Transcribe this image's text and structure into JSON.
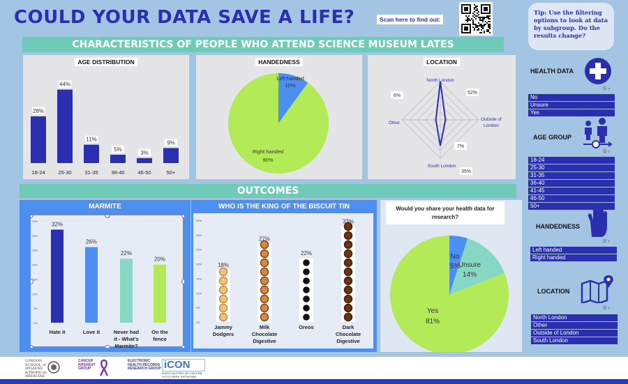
{
  "header": {
    "title": "COULD YOUR DATA SAVE A LIFE?",
    "scan_label": "Scan here to find out:"
  },
  "tip_text": "Tip: Use the filtering options to look at data by subgroup. Do the results change?",
  "sections": {
    "characteristics": "CHARACTERISTICS OF PEOPLE WHO ATTEND SCIENCE MUSEUM LATES",
    "outcomes": "OUTCOMES"
  },
  "colors": {
    "navy": "#2a2fb0",
    "teal": "#6fcbb8",
    "lime": "#b3ea57",
    "cornflower": "#4d8ff0",
    "lavender": "#a9a9e8",
    "mint": "#86d7c4"
  },
  "chart_data": [
    {
      "id": "age",
      "type": "bar",
      "title": "AGE DISTRIBUTION",
      "categories": [
        "18-24",
        "25-30",
        "31-35",
        "36-40",
        "46-50",
        "50+"
      ],
      "values": [
        28,
        44,
        11,
        5,
        3,
        9
      ],
      "labels": [
        "28%",
        "44%",
        "11%",
        "5%",
        "3%",
        "9%"
      ],
      "ylim": [
        0,
        48
      ]
    },
    {
      "id": "handedness",
      "type": "pie",
      "title": "HANDEDNESS",
      "slices": [
        {
          "name": "Left handed",
          "value": 10,
          "label": "10%"
        },
        {
          "name": "Right handed",
          "value": 90,
          "label": "90%"
        }
      ]
    },
    {
      "id": "location",
      "type": "radar",
      "title": "LOCATION",
      "axes": [
        {
          "name": "North London",
          "value": 52,
          "label": "52%"
        },
        {
          "name": "Outside of London",
          "value": 7,
          "label": "7%"
        },
        {
          "name": "South London",
          "value": 35,
          "label": "35%"
        },
        {
          "name": "Other",
          "value": 6,
          "label": "6%"
        }
      ],
      "rmax": 52
    },
    {
      "id": "marmite",
      "type": "bar",
      "title": "MARMITE",
      "categories": [
        "Hate it",
        "Love it",
        "Never had it - What's Marmite?",
        "On the fence"
      ],
      "values": [
        32,
        26,
        22,
        20
      ],
      "labels": [
        "32%",
        "26%",
        "22%",
        "20%"
      ],
      "yticks": [
        "0%",
        "5%",
        "10%",
        "15%",
        "20%",
        "25%",
        "30%",
        "35%"
      ],
      "ylim": [
        0,
        35
      ]
    },
    {
      "id": "biscuit",
      "type": "bar",
      "title": "WHO IS THE KING OF THE BISCUIT TIN",
      "categories": [
        "Jammy Dodgers",
        "Milk Chocolate Digestive",
        "Oreos",
        "Dark Chocolate Digestive"
      ],
      "values": [
        18,
        27,
        22,
        33
      ],
      "labels": [
        "18%",
        "27%",
        "22%",
        "33%"
      ],
      "yticks": [
        "0%",
        "5%",
        "10%",
        "15%",
        "20%",
        "25%",
        "30%",
        "35%"
      ],
      "ylim": [
        0,
        35
      ]
    },
    {
      "id": "share",
      "type": "pie",
      "title": "Would you share your health data for research?",
      "slices": [
        {
          "name": "No",
          "value": 5,
          "label": "5%"
        },
        {
          "name": "Unsure",
          "value": 14,
          "label": "14%"
        },
        {
          "name": "Yes",
          "value": 81,
          "label": "81%"
        }
      ]
    }
  ],
  "sidebar": {
    "health_data": {
      "heading": "HEALTH DATA",
      "icon": "medical-cross-icon",
      "options": [
        "No",
        "Unsure",
        "Yes"
      ]
    },
    "age_group": {
      "heading": "AGE GROUP",
      "icon": "family-icon",
      "options": [
        "18-24",
        "25-30",
        "31-35",
        "36-40",
        "41-45",
        "46-50",
        "50+"
      ]
    },
    "handedness": {
      "heading": "HANDEDNESS",
      "icon": "hand-icon",
      "options": [
        "Left handed",
        "Right handed"
      ]
    },
    "location": {
      "heading": "LOCATION",
      "icon": "map-icon",
      "options": [
        "North London",
        "Other",
        "Outside of London",
        "South London"
      ]
    }
  },
  "footer": {
    "logos": [
      {
        "name": "lshtm-logo",
        "text": "LONDON SCHOOL of HYGIENE &TROPICAL MEDICINE"
      },
      {
        "name": "cancer-interest-group-logo",
        "text": "CANCER INTEREST GROUP"
      },
      {
        "name": "ehr-logo",
        "text": "ELECTRONIC HEALTH RECORDS RESEARCH GROUP"
      },
      {
        "name": "icon-logo",
        "text": "iCON",
        "sub": "INEQUALITIES IN CANCER OUTCOMES NETWORK"
      }
    ]
  }
}
